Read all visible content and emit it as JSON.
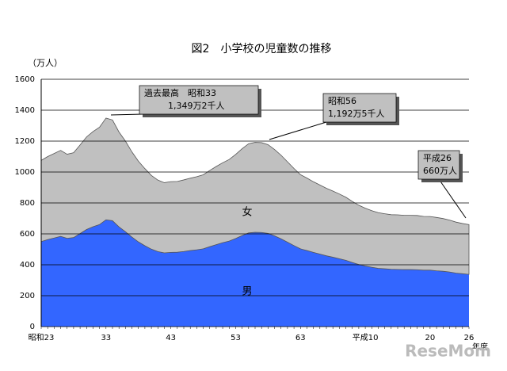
{
  "chart_data": {
    "type": "stacked_area",
    "title": "図2　小学校の児童数の推移",
    "y_label": "（万人）",
    "x_label": "年度",
    "categories": [
      "昭和23",
      null,
      null,
      null,
      null,
      null,
      null,
      null,
      null,
      null,
      "33",
      null,
      null,
      null,
      null,
      null,
      null,
      null,
      null,
      null,
      "43",
      null,
      null,
      null,
      null,
      null,
      null,
      null,
      null,
      null,
      "53",
      null,
      null,
      null,
      null,
      null,
      null,
      null,
      null,
      null,
      "63",
      null,
      null,
      null,
      null,
      null,
      null,
      null,
      null,
      null,
      "平成10",
      null,
      null,
      null,
      null,
      null,
      null,
      null,
      null,
      null,
      "20",
      null,
      null,
      null,
      null,
      null,
      "26"
    ],
    "series": [
      {
        "name": "男",
        "color": "#3366ff",
        "values": [
          550,
          563,
          573,
          584,
          571,
          576,
          602,
          628,
          646,
          660,
          691,
          685,
          645,
          614,
          579,
          548,
          523,
          501,
          485,
          477,
          480,
          481,
          486,
          492,
          497,
          503,
          517,
          530,
          543,
          553,
          570,
          589,
          606,
          610,
          609,
          603,
          587,
          568,
          546,
          524,
          503,
          492,
          480,
          469,
          458,
          449,
          439,
          429,
          415,
          402,
          392,
          384,
          377,
          374,
          371,
          370,
          369,
          369,
          368,
          365,
          365,
          361,
          358,
          353,
          346,
          342,
          338
        ]
      },
      {
        "name": "女",
        "color": "#c0c0c0",
        "values": [
          525,
          537,
          547,
          556,
          544,
          549,
          573,
          599,
          616,
          630,
          658,
          652,
          614,
          586,
          551,
          522,
          499,
          477,
          463,
          454,
          458,
          458,
          463,
          468,
          473,
          479,
          493,
          506,
          517,
          528,
          544,
          562,
          577,
          582,
          581,
          574,
          559,
          541,
          520,
          499,
          480,
          469,
          457,
          447,
          437,
          428,
          419,
          408,
          395,
          383,
          374,
          366,
          360,
          356,
          353,
          353,
          351,
          351,
          351,
          348,
          347,
          345,
          341,
          336,
          330,
          325,
          322
        ]
      }
    ],
    "ylim": [
      0,
      1600
    ],
    "yticks": [
      0,
      200,
      400,
      600,
      800,
      1000,
      1200,
      1400,
      1600
    ],
    "grid": true,
    "annotations": [
      {
        "lines": [
          "過去最高　昭和33",
          "1,349万2千人"
        ]
      },
      {
        "lines": [
          "昭和56",
          "1,192万5千人"
        ]
      },
      {
        "lines": [
          "平成26",
          "660万人"
        ]
      }
    ],
    "watermark": "ReseMom"
  }
}
